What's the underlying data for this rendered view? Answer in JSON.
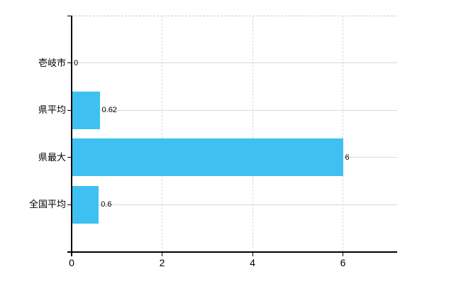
{
  "chart_data": {
    "type": "bar",
    "orientation": "horizontal",
    "title": "",
    "xlabel": "",
    "ylabel": "",
    "categories": [
      "壱岐市",
      "県平均",
      "県最大",
      "全国平均"
    ],
    "values": [
      0,
      0.62,
      6,
      0.6
    ],
    "value_labels": [
      "0",
      "0.62",
      "6",
      "0.6"
    ],
    "x_ticks": [
      0,
      2,
      4,
      6
    ],
    "x_tick_labels": [
      "0",
      "2",
      "4",
      "6"
    ],
    "xlim": [
      0,
      7.2
    ],
    "legend": "none",
    "grid": "horizontal-solid-and-vertical-dashed",
    "colors": {
      "bar": "#3ec1f0",
      "axis": "#000000",
      "horizontal_gridline": "#d6dcd6",
      "vertical_gridline": "#d9d9d9",
      "plot_top_border": "#cccccc",
      "text": "#000000",
      "background": "#ffffff"
    }
  }
}
